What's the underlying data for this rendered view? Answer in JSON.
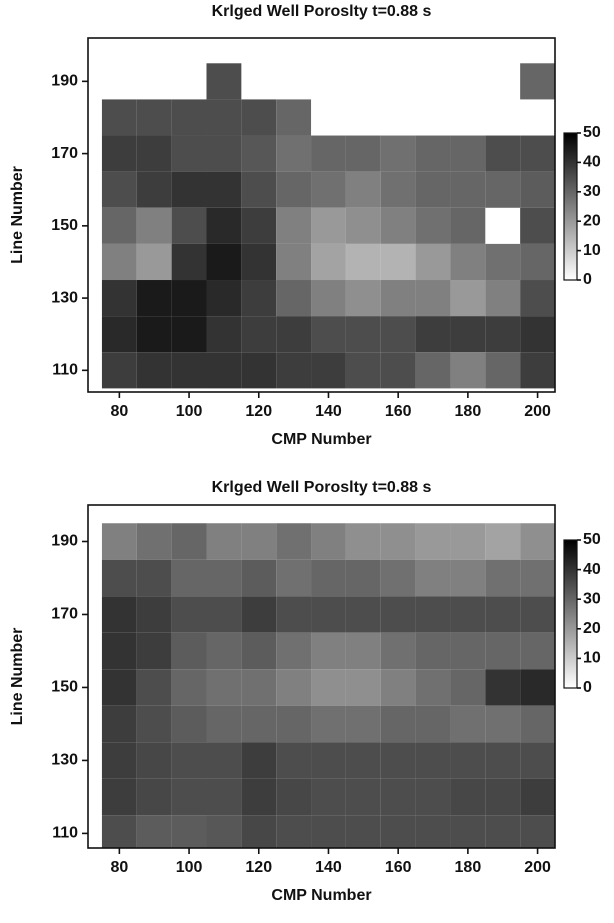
{
  "chart_data": [
    {
      "type": "heatmap",
      "title": "Krlged Well Poroslty t=0.88 s",
      "x_label": "CMP Number",
      "y_label": "Line Number",
      "x": [
        80,
        90,
        100,
        110,
        120,
        130,
        140,
        150,
        160,
        170,
        180,
        190,
        200
      ],
      "y": [
        190,
        180,
        170,
        160,
        150,
        140,
        130,
        120,
        110
      ],
      "values": [
        [
          null,
          null,
          null,
          35,
          null,
          null,
          null,
          null,
          null,
          null,
          null,
          null,
          30
        ],
        [
          35,
          35,
          35,
          35,
          35,
          30,
          null,
          null,
          null,
          null,
          null,
          null,
          null
        ],
        [
          38,
          38,
          35,
          35,
          33,
          28,
          30,
          30,
          28,
          30,
          30,
          35,
          35
        ],
        [
          35,
          38,
          40,
          40,
          35,
          30,
          28,
          25,
          28,
          30,
          30,
          30,
          32
        ],
        [
          30,
          25,
          35,
          42,
          38,
          25,
          20,
          22,
          25,
          28,
          30,
          null,
          35
        ],
        [
          25,
          20,
          40,
          45,
          40,
          25,
          18,
          15,
          15,
          20,
          25,
          28,
          30
        ],
        [
          40,
          45,
          45,
          42,
          38,
          30,
          25,
          22,
          25,
          25,
          20,
          25,
          35
        ],
        [
          42,
          45,
          45,
          40,
          38,
          38,
          35,
          35,
          35,
          38,
          38,
          38,
          40
        ],
        [
          38,
          40,
          40,
          40,
          40,
          38,
          38,
          35,
          35,
          30,
          25,
          30,
          38
        ]
      ],
      "xlim": [
        71,
        205
      ],
      "ylim": [
        104,
        202
      ],
      "xticks": [
        80,
        100,
        120,
        140,
        160,
        180,
        200
      ],
      "yticks": [
        110,
        130,
        150,
        170,
        190
      ],
      "colorbar_lim": [
        0,
        50
      ],
      "colorbar_ticks": [
        0,
        10,
        20,
        30,
        40,
        50
      ],
      "low_color": "#ffffff",
      "high_color": "#000000"
    },
    {
      "type": "heatmap",
      "title": "Krlged Well Poroslty t=0.88 s",
      "x_label": "CMP Number",
      "y_label": "Line Number",
      "x": [
        80,
        90,
        100,
        110,
        120,
        130,
        140,
        150,
        160,
        170,
        180,
        190,
        200
      ],
      "y": [
        190,
        180,
        170,
        160,
        150,
        140,
        130,
        120,
        110
      ],
      "values": [
        [
          25,
          28,
          30,
          25,
          25,
          28,
          25,
          22,
          22,
          20,
          20,
          18,
          22
        ],
        [
          35,
          35,
          30,
          30,
          32,
          28,
          30,
          30,
          28,
          25,
          25,
          28,
          28
        ],
        [
          40,
          38,
          35,
          35,
          38,
          35,
          35,
          35,
          35,
          35,
          35,
          35,
          35
        ],
        [
          40,
          38,
          32,
          30,
          32,
          28,
          25,
          25,
          28,
          30,
          30,
          30,
          30
        ],
        [
          40,
          35,
          30,
          28,
          28,
          25,
          22,
          22,
          25,
          28,
          30,
          40,
          42
        ],
        [
          38,
          35,
          32,
          30,
          30,
          30,
          28,
          28,
          30,
          30,
          28,
          28,
          30
        ],
        [
          38,
          36,
          35,
          35,
          38,
          35,
          35,
          35,
          35,
          35,
          35,
          35,
          35
        ],
        [
          38,
          36,
          35,
          35,
          38,
          36,
          35,
          35,
          35,
          35,
          36,
          36,
          38
        ],
        [
          35,
          32,
          32,
          33,
          36,
          35,
          35,
          35,
          35,
          35,
          35,
          35,
          35
        ]
      ],
      "xlim": [
        71,
        205
      ],
      "ylim": [
        106,
        200
      ],
      "xticks": [
        80,
        100,
        120,
        140,
        160,
        180,
        200
      ],
      "yticks": [
        110,
        130,
        150,
        170,
        190
      ],
      "colorbar_lim": [
        0,
        50
      ],
      "colorbar_ticks": [
        0,
        10,
        20,
        30,
        40,
        50
      ],
      "low_color": "#ffffff",
      "high_color": "#000000"
    }
  ]
}
